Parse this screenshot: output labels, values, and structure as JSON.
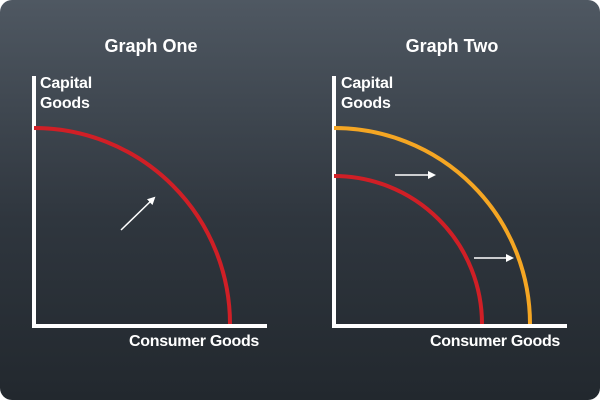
{
  "colors": {
    "background_top": "#4f5862",
    "background_bottom": "#22282e",
    "axis": "#ffffff",
    "original_curve": "#d01f26",
    "shifted_curve": "#f5a623",
    "arrow": "#ffffff"
  },
  "graph_one": {
    "title": "Graph One",
    "y_axis_label_line1": "Capital",
    "y_axis_label_line2": "Goods",
    "x_axis_label": "Consumer Goods",
    "curves": [
      "original production possibilities curve"
    ],
    "arrows": [
      "diagonal arrow pointing outward (up-right)"
    ]
  },
  "graph_two": {
    "title": "Graph Two",
    "y_axis_label_line1": "Capital",
    "y_axis_label_line2": "Goods",
    "x_axis_label": "Consumer Goods",
    "curves": [
      "original production possibilities curve",
      "shifted-out production possibilities curve"
    ],
    "arrows": [
      "horizontal arrow pointing right (upper)",
      "horizontal arrow pointing right (lower)"
    ]
  }
}
